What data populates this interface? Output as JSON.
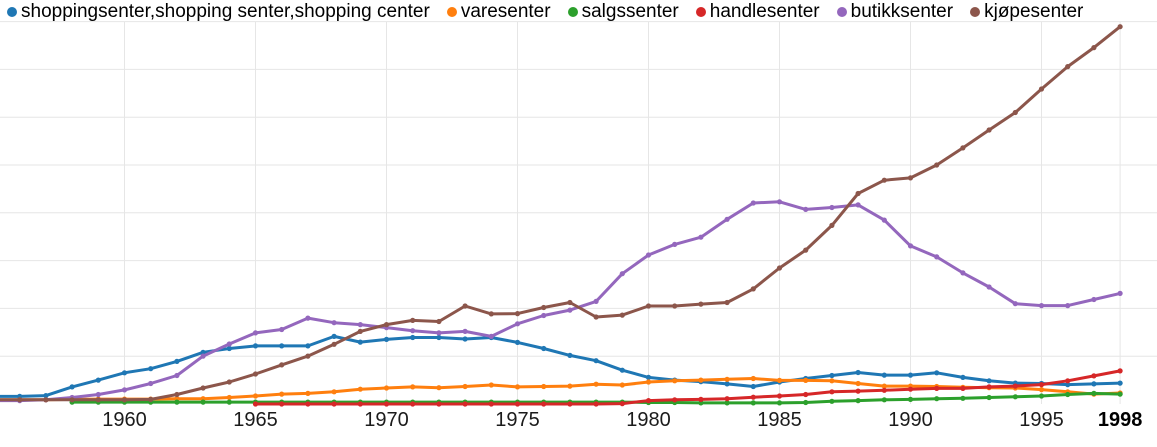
{
  "legend": {
    "items": [
      {
        "key": "shoppingsenter",
        "label": "shoppingsenter,shopping senter,shopping center",
        "color": "#1f77b4"
      },
      {
        "key": "varesenter",
        "label": "varesenter",
        "color": "#ff7f0e"
      },
      {
        "key": "salgssenter",
        "label": "salgssenter",
        "color": "#2ca02c"
      },
      {
        "key": "handlesenter",
        "label": "handlesenter",
        "color": "#d62728"
      },
      {
        "key": "butikksenter",
        "label": "butikksenter",
        "color": "#9467bd"
      },
      {
        "key": "kjopesenter",
        "label": "kjøpesenter",
        "color": "#8c564b"
      }
    ]
  },
  "chart_data": {
    "type": "line",
    "title": "",
    "xlabel": "",
    "ylabel": "",
    "units": "relative frequency, unlabeled y-axis (0-100 of chart height)",
    "grid": true,
    "legend_position": "top-left",
    "x_range": [
      1956,
      1998
    ],
    "ylim": [
      0,
      100
    ],
    "x": [
      1956,
      1957,
      1958,
      1959,
      1960,
      1961,
      1962,
      1963,
      1964,
      1965,
      1966,
      1967,
      1968,
      1969,
      1970,
      1971,
      1972,
      1973,
      1974,
      1975,
      1976,
      1977,
      1978,
      1979,
      1980,
      1981,
      1982,
      1983,
      1984,
      1985,
      1986,
      1987,
      1988,
      1989,
      1990,
      1991,
      1992,
      1993,
      1994,
      1995,
      1996,
      1997,
      1998
    ],
    "x_tick_labels": [
      {
        "label": "1960",
        "year": 1960,
        "bold": false
      },
      {
        "label": "1965",
        "year": 1965,
        "bold": false
      },
      {
        "label": "1970",
        "year": 1970,
        "bold": false
      },
      {
        "label": "1975",
        "year": 1975,
        "bold": false
      },
      {
        "label": "1980",
        "year": 1980,
        "bold": false
      },
      {
        "label": "1985",
        "year": 1985,
        "bold": false
      },
      {
        "label": "1990",
        "year": 1990,
        "bold": false
      },
      {
        "label": "1995",
        "year": 1995,
        "bold": false
      },
      {
        "label": "1998",
        "year": 1998,
        "bold": true
      }
    ],
    "series": [
      {
        "name": "shoppingsenter,shopping senter,shopping center",
        "color": "#1f77b4",
        "values": [
          2.0,
          2.2,
          4.5,
          6.3,
          8.2,
          9.3,
          11.2,
          13.6,
          14.6,
          15.3,
          15.3,
          15.3,
          17.8,
          16.3,
          17.0,
          17.5,
          17.5,
          17.1,
          17.5,
          16.2,
          14.6,
          12.8,
          11.4,
          8.9,
          7.0,
          6.3,
          5.9,
          5.3,
          4.6,
          5.8,
          6.7,
          7.5,
          8.3,
          7.6,
          7.6,
          8.2,
          7.0,
          6.1,
          5.5,
          5.4,
          5.1,
          5.3,
          5.5
        ]
      },
      {
        "name": "varesenter",
        "color": "#ff7f0e",
        "values": [
          1.1,
          1.1,
          1.2,
          1.3,
          1.3,
          1.3,
          1.4,
          1.4,
          1.7,
          2.1,
          2.6,
          2.8,
          3.2,
          3.9,
          4.2,
          4.5,
          4.3,
          4.6,
          5.0,
          4.5,
          4.6,
          4.7,
          5.2,
          5.0,
          5.8,
          6.1,
          6.3,
          6.5,
          6.7,
          6.2,
          6.2,
          6.1,
          5.4,
          4.7,
          4.7,
          4.6,
          4.4,
          4.3,
          4.2,
          3.8,
          3.2,
          2.6,
          2.9
        ]
      },
      {
        "name": "salgssenter",
        "color": "#2ca02c",
        "values": [
          null,
          null,
          0.5,
          0.5,
          0.5,
          0.5,
          0.5,
          0.5,
          0.5,
          0.5,
          0.5,
          0.5,
          0.5,
          0.5,
          0.5,
          0.5,
          0.5,
          0.5,
          0.5,
          0.5,
          0.5,
          0.5,
          0.5,
          0.5,
          0.4,
          0.4,
          0.3,
          0.3,
          0.3,
          0.3,
          0.4,
          0.7,
          0.9,
          1.1,
          1.2,
          1.4,
          1.5,
          1.7,
          1.9,
          2.1,
          2.5,
          2.8,
          2.6
        ]
      },
      {
        "name": "handlesenter",
        "color": "#d62728",
        "values": [
          null,
          null,
          null,
          null,
          null,
          null,
          null,
          null,
          null,
          0.0,
          0.0,
          0.0,
          0.0,
          0.0,
          0.0,
          0.0,
          0.0,
          0.0,
          0.0,
          0.0,
          0.0,
          0.0,
          0.0,
          0.1,
          0.9,
          1.1,
          1.2,
          1.4,
          1.8,
          2.1,
          2.5,
          3.2,
          3.4,
          3.6,
          3.9,
          4.1,
          4.1,
          4.5,
          4.7,
          5.1,
          6.1,
          7.4,
          8.7
        ]
      },
      {
        "name": "butikksenter",
        "color": "#9467bd",
        "values": [
          0.9,
          1.1,
          1.7,
          2.5,
          3.7,
          5.4,
          7.5,
          12.6,
          15.8,
          18.7,
          19.6,
          22.6,
          21.4,
          20.9,
          20.1,
          19.3,
          18.7,
          19.1,
          17.8,
          21.1,
          23.3,
          24.7,
          27.0,
          34.3,
          39.2,
          42.0,
          43.9,
          48.6,
          52.9,
          53.2,
          51.2,
          51.7,
          52.4,
          48.4,
          41.6,
          38.7,
          34.5,
          30.8,
          26.4,
          25.9,
          25.9,
          27.5,
          29.1
        ]
      },
      {
        "name": "kjøpesenter",
        "color": "#8c564b",
        "values": [
          1.1,
          1.1,
          1.1,
          1.1,
          1.1,
          1.2,
          2.5,
          4.2,
          5.8,
          7.9,
          10.3,
          12.6,
          15.7,
          19.1,
          20.9,
          22.0,
          21.7,
          25.8,
          23.7,
          23.8,
          25.4,
          26.7,
          22.9,
          23.4,
          25.8,
          25.8,
          26.3,
          26.7,
          30.3,
          35.8,
          40.5,
          47.0,
          55.4,
          58.9,
          59.5,
          62.9,
          67.4,
          72.1,
          76.7,
          82.9,
          88.8,
          93.8,
          99.3
        ]
      }
    ]
  }
}
